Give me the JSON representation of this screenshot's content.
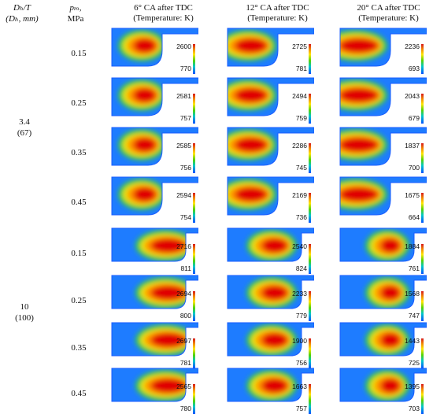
{
  "header": {
    "diam_label": "Dₕ/T",
    "diam_unit": "(Dₕ, mm)",
    "p_label": "pₘ,",
    "p_unit": "MPa",
    "col1": [
      "6° CA after TDC",
      "(Temperature: K)"
    ],
    "col2": [
      "12° CA after TDC",
      "(Temperature: K)"
    ],
    "col3": [
      "20° CA after TDC",
      "(Temperature: K)"
    ]
  },
  "groups": [
    {
      "ratio": "3.4",
      "dia": "(67)"
    },
    {
      "ratio": "10",
      "dia": "(100)"
    }
  ],
  "rows": [
    {
      "p": "0.15",
      "ranges": [
        [
          "2600",
          "770"
        ],
        [
          "2725",
          "781"
        ],
        [
          "2236",
          "693"
        ]
      ]
    },
    {
      "p": "0.25",
      "ranges": [
        [
          "2581",
          "757"
        ],
        [
          "2494",
          "759"
        ],
        [
          "2043",
          "679"
        ]
      ]
    },
    {
      "p": "0.35",
      "ranges": [
        [
          "2585",
          "756"
        ],
        [
          "2286",
          "745"
        ],
        [
          "1837",
          "700"
        ]
      ]
    },
    {
      "p": "0.45",
      "ranges": [
        [
          "2594",
          "754"
        ],
        [
          "2169",
          "736"
        ],
        [
          "1675",
          "664"
        ]
      ]
    },
    {
      "p": "0.15",
      "ranges": [
        [
          "2716",
          "811"
        ],
        [
          "2540",
          "824"
        ],
        [
          "1884",
          "761"
        ]
      ]
    },
    {
      "p": "0.25",
      "ranges": [
        [
          "2694",
          "800"
        ],
        [
          "2233",
          "779"
        ],
        [
          "1568",
          "747"
        ]
      ]
    },
    {
      "p": "0.35",
      "ranges": [
        [
          "2697",
          "781"
        ],
        [
          "1900",
          "756"
        ],
        [
          "1443",
          "725"
        ]
      ]
    },
    {
      "p": "0.45",
      "ranges": [
        [
          "2565",
          "780"
        ],
        [
          "1663",
          "757"
        ],
        [
          "1395",
          "703"
        ]
      ]
    }
  ],
  "colors": {
    "hot": "#e00000",
    "warm": "#ff8c00",
    "mid": "#f0e000",
    "cool": "#33cc44",
    "cold": "#1e7cff",
    "frame": "#1a5cff"
  }
}
